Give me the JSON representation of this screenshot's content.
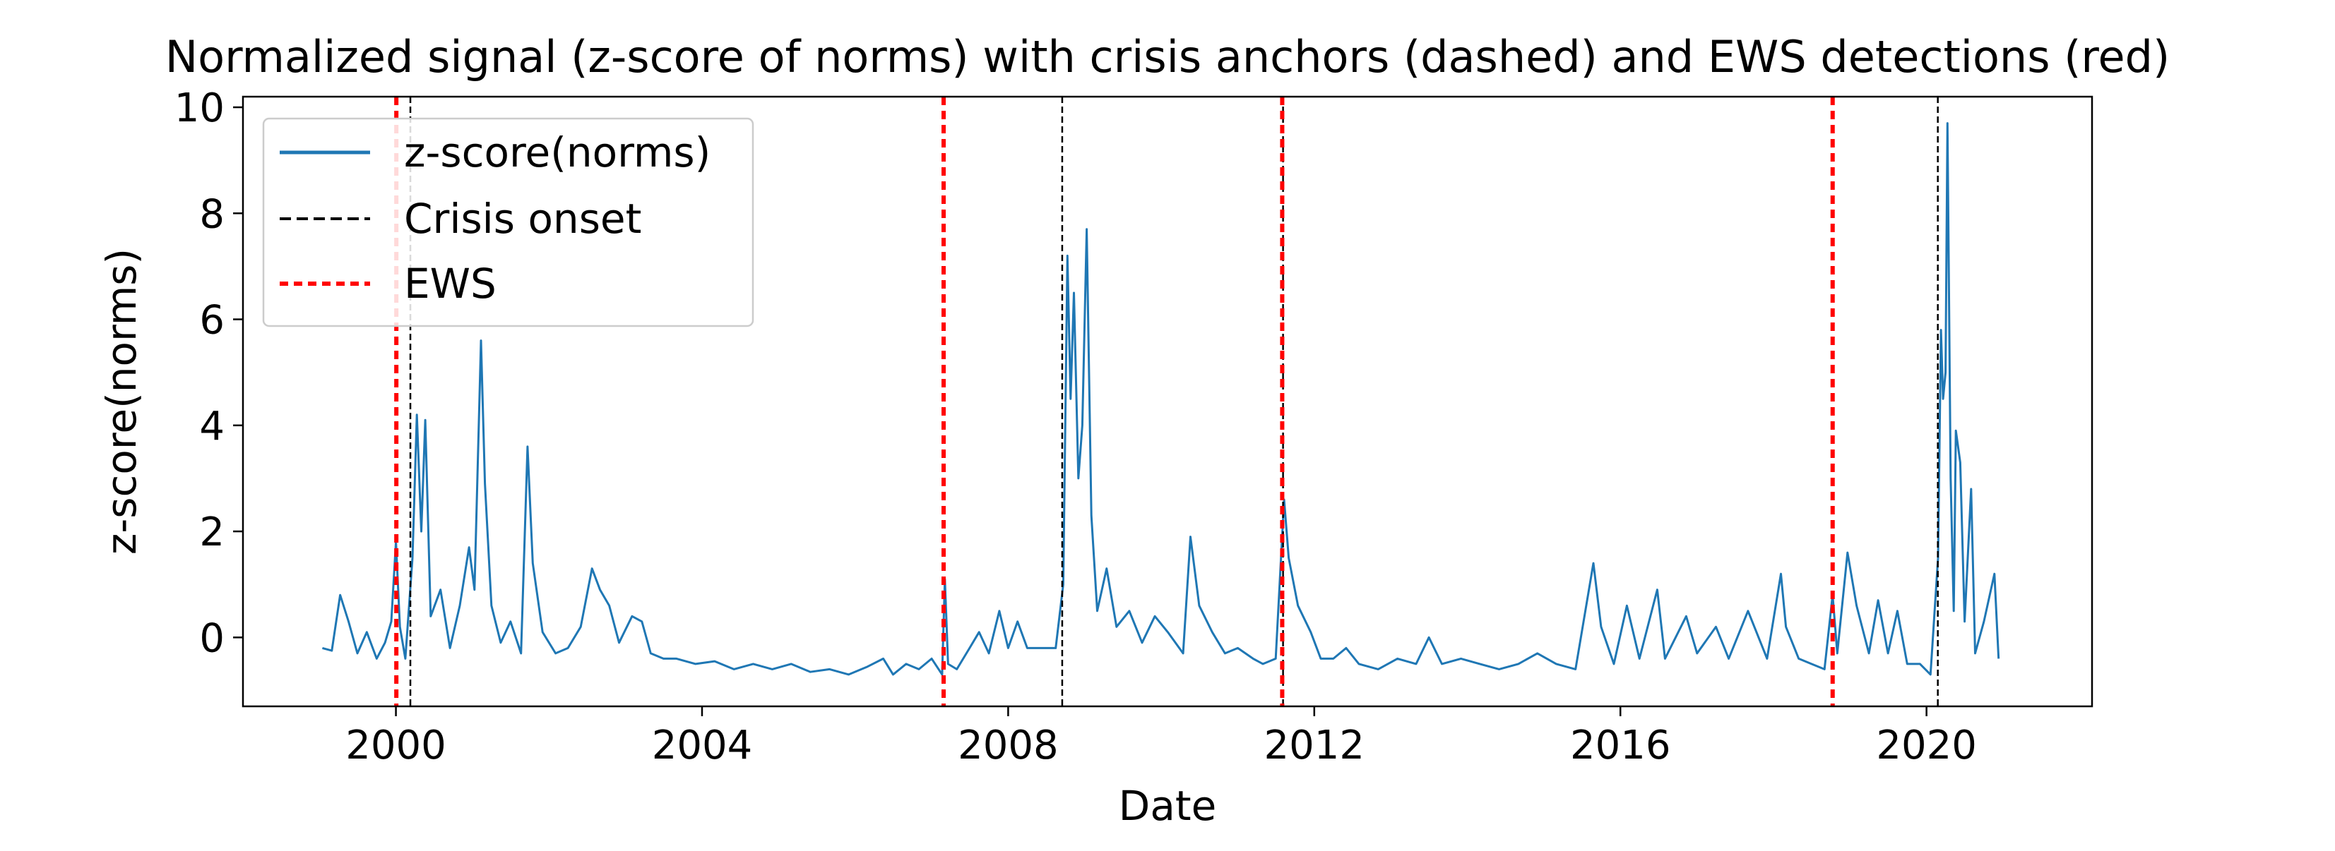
{
  "chart_data": {
    "type": "line",
    "title": "Normalized signal (z-score of norms) with crisis anchors (dashed) and EWS detections (red)",
    "xlabel": "Date",
    "ylabel": "z-score(norms)",
    "xlim": [
      "1998-01-01",
      "2022-03-01"
    ],
    "ylim": [
      -1.3,
      10.2
    ],
    "x_ticks": [
      "2000",
      "2004",
      "2008",
      "2012",
      "2016",
      "2020"
    ],
    "y_ticks": [
      "0",
      "2",
      "4",
      "6",
      "8",
      "10"
    ],
    "grid": false,
    "legend": {
      "placement": "upper left",
      "entries": [
        "z-score(norms)",
        "Crisis onset",
        "EWS"
      ]
    },
    "colors": {
      "signal": "#1f77b4",
      "crisis": "#000000",
      "ews": "#ff0000"
    },
    "series": [
      {
        "name": "z-score(norms)",
        "points": [
          [
            "1999-01-15",
            -0.2
          ],
          [
            "1999-03-01",
            -0.25
          ],
          [
            "1999-04-10",
            0.8
          ],
          [
            "1999-05-20",
            0.3
          ],
          [
            "1999-07-01",
            -0.3
          ],
          [
            "1999-08-15",
            0.1
          ],
          [
            "1999-10-01",
            -0.4
          ],
          [
            "1999-11-10",
            -0.1
          ],
          [
            "1999-12-10",
            0.3
          ],
          [
            "2000-01-01",
            1.8
          ],
          [
            "2000-01-20",
            0.2
          ],
          [
            "2000-02-15",
            -0.4
          ],
          [
            "2000-03-20",
            1.5
          ],
          [
            "2000-04-10",
            4.2
          ],
          [
            "2000-05-01",
            2.0
          ],
          [
            "2000-05-20",
            4.1
          ],
          [
            "2000-06-15",
            0.4
          ],
          [
            "2000-08-01",
            0.9
          ],
          [
            "2000-09-15",
            -0.2
          ],
          [
            "2000-11-01",
            0.6
          ],
          [
            "2000-12-15",
            1.7
          ],
          [
            "2001-01-10",
            0.9
          ],
          [
            "2001-02-10",
            5.6
          ],
          [
            "2001-03-01",
            2.9
          ],
          [
            "2001-04-01",
            0.6
          ],
          [
            "2001-05-15",
            -0.1
          ],
          [
            "2001-07-01",
            0.3
          ],
          [
            "2001-08-20",
            -0.3
          ],
          [
            "2001-09-20",
            3.6
          ],
          [
            "2001-10-15",
            1.4
          ],
          [
            "2001-12-01",
            0.1
          ],
          [
            "2002-02-01",
            -0.3
          ],
          [
            "2002-04-01",
            -0.2
          ],
          [
            "2002-06-01",
            0.2
          ],
          [
            "2002-07-25",
            1.3
          ],
          [
            "2002-09-01",
            0.9
          ],
          [
            "2002-10-15",
            0.6
          ],
          [
            "2002-12-01",
            -0.1
          ],
          [
            "2003-02-01",
            0.4
          ],
          [
            "2003-03-20",
            0.3
          ],
          [
            "2003-05-01",
            -0.3
          ],
          [
            "2003-07-01",
            -0.4
          ],
          [
            "2003-09-01",
            -0.4
          ],
          [
            "2003-12-01",
            -0.5
          ],
          [
            "2004-03-01",
            -0.45
          ],
          [
            "2004-06-01",
            -0.6
          ],
          [
            "2004-09-01",
            -0.5
          ],
          [
            "2004-12-01",
            -0.6
          ],
          [
            "2005-03-01",
            -0.5
          ],
          [
            "2005-06-01",
            -0.65
          ],
          [
            "2005-09-01",
            -0.6
          ],
          [
            "2005-12-01",
            -0.7
          ],
          [
            "2006-03-01",
            -0.55
          ],
          [
            "2006-05-15",
            -0.4
          ],
          [
            "2006-07-01",
            -0.7
          ],
          [
            "2006-09-01",
            -0.5
          ],
          [
            "2006-11-01",
            -0.6
          ],
          [
            "2007-01-01",
            -0.4
          ],
          [
            "2007-02-20",
            -0.7
          ],
          [
            "2007-03-05",
            1.1
          ],
          [
            "2007-03-20",
            -0.5
          ],
          [
            "2007-05-01",
            -0.6
          ],
          [
            "2007-07-01",
            -0.2
          ],
          [
            "2007-08-15",
            0.1
          ],
          [
            "2007-10-01",
            -0.3
          ],
          [
            "2007-11-20",
            0.5
          ],
          [
            "2008-01-01",
            -0.2
          ],
          [
            "2008-02-15",
            0.3
          ],
          [
            "2008-04-01",
            -0.2
          ],
          [
            "2008-06-01",
            -0.2
          ],
          [
            "2008-08-15",
            -0.2
          ],
          [
            "2008-09-20",
            1.0
          ],
          [
            "2008-10-10",
            7.2
          ],
          [
            "2008-10-25",
            4.5
          ],
          [
            "2008-11-10",
            6.5
          ],
          [
            "2008-12-01",
            3.0
          ],
          [
            "2008-12-20",
            4.0
          ],
          [
            "2009-01-10",
            7.7
          ],
          [
            "2009-02-01",
            2.3
          ],
          [
            "2009-03-01",
            0.5
          ],
          [
            "2009-04-15",
            1.3
          ],
          [
            "2009-06-01",
            0.2
          ],
          [
            "2009-08-01",
            0.5
          ],
          [
            "2009-10-01",
            -0.1
          ],
          [
            "2009-12-01",
            0.4
          ],
          [
            "2010-02-01",
            0.1
          ],
          [
            "2010-04-15",
            -0.3
          ],
          [
            "2010-05-20",
            1.9
          ],
          [
            "2010-07-01",
            0.6
          ],
          [
            "2010-09-01",
            0.1
          ],
          [
            "2010-11-01",
            -0.3
          ],
          [
            "2011-01-01",
            -0.2
          ],
          [
            "2011-03-15",
            -0.4
          ],
          [
            "2011-05-01",
            -0.5
          ],
          [
            "2011-07-01",
            -0.4
          ],
          [
            "2011-08-10",
            2.6
          ],
          [
            "2011-09-01",
            1.5
          ],
          [
            "2011-10-15",
            0.6
          ],
          [
            "2011-12-15",
            0.1
          ],
          [
            "2012-02-01",
            -0.4
          ],
          [
            "2012-04-01",
            -0.4
          ],
          [
            "2012-06-01",
            -0.2
          ],
          [
            "2012-08-01",
            -0.5
          ],
          [
            "2012-11-01",
            -0.6
          ],
          [
            "2013-02-01",
            -0.4
          ],
          [
            "2013-05-01",
            -0.5
          ],
          [
            "2013-07-01",
            0.0
          ],
          [
            "2013-09-01",
            -0.5
          ],
          [
            "2013-12-01",
            -0.4
          ],
          [
            "2014-03-01",
            -0.5
          ],
          [
            "2014-06-01",
            -0.6
          ],
          [
            "2014-09-01",
            -0.5
          ],
          [
            "2014-12-01",
            -0.3
          ],
          [
            "2015-03-01",
            -0.5
          ],
          [
            "2015-06-01",
            -0.6
          ],
          [
            "2015-08-25",
            1.4
          ],
          [
            "2015-10-01",
            0.2
          ],
          [
            "2015-12-01",
            -0.5
          ],
          [
            "2016-02-01",
            0.6
          ],
          [
            "2016-04-01",
            -0.4
          ],
          [
            "2016-06-25",
            0.9
          ],
          [
            "2016-08-01",
            -0.4
          ],
          [
            "2016-11-10",
            0.4
          ],
          [
            "2017-01-01",
            -0.3
          ],
          [
            "2017-04-01",
            0.2
          ],
          [
            "2017-06-01",
            -0.4
          ],
          [
            "2017-09-01",
            0.5
          ],
          [
            "2017-12-01",
            -0.4
          ],
          [
            "2018-02-05",
            1.2
          ],
          [
            "2018-03-01",
            0.2
          ],
          [
            "2018-05-01",
            -0.4
          ],
          [
            "2018-07-01",
            -0.5
          ],
          [
            "2018-09-01",
            -0.6
          ],
          [
            "2018-10-10",
            0.8
          ],
          [
            "2018-11-01",
            -0.3
          ],
          [
            "2018-12-20",
            1.6
          ],
          [
            "2019-02-01",
            0.6
          ],
          [
            "2019-04-01",
            -0.3
          ],
          [
            "2019-05-15",
            0.7
          ],
          [
            "2019-07-01",
            -0.3
          ],
          [
            "2019-08-15",
            0.5
          ],
          [
            "2019-10-01",
            -0.5
          ],
          [
            "2019-12-01",
            -0.5
          ],
          [
            "2020-01-20",
            -0.7
          ],
          [
            "2020-02-25",
            1.5
          ],
          [
            "2020-03-10",
            5.8
          ],
          [
            "2020-03-20",
            4.5
          ],
          [
            "2020-04-01",
            5.0
          ],
          [
            "2020-04-10",
            9.7
          ],
          [
            "2020-04-25",
            3.0
          ],
          [
            "2020-05-10",
            0.5
          ],
          [
            "2020-05-20",
            3.9
          ],
          [
            "2020-06-10",
            3.3
          ],
          [
            "2020-07-01",
            0.3
          ],
          [
            "2020-08-01",
            2.8
          ],
          [
            "2020-08-20",
            -0.3
          ],
          [
            "2020-10-01",
            0.3
          ],
          [
            "2020-11-20",
            1.2
          ],
          [
            "2020-12-10",
            -0.4
          ]
        ]
      }
    ],
    "crisis_onsets": [
      "2000-03-10",
      "2008-09-15",
      "2011-08-05",
      "2020-02-24"
    ],
    "ews_detections": [
      "2000-01-03",
      "2007-02-27",
      "2011-08-01",
      "2018-10-10"
    ]
  }
}
